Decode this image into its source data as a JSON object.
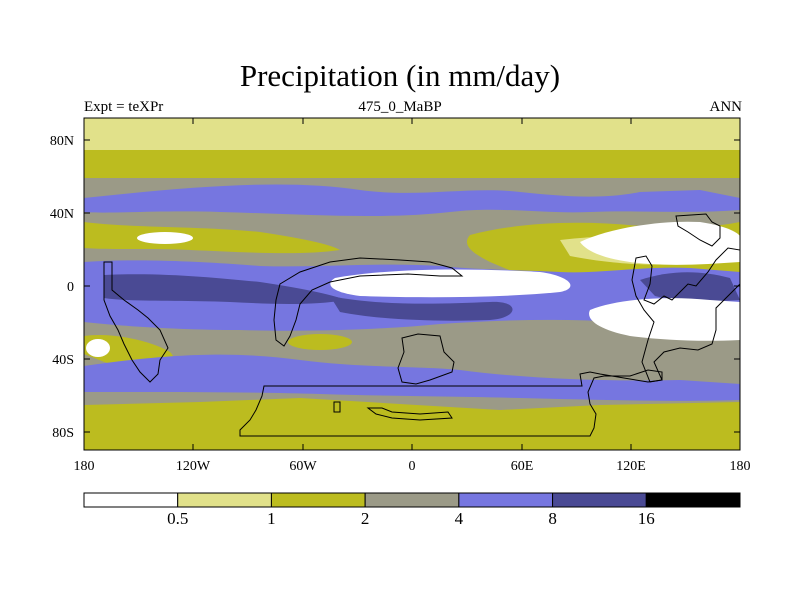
{
  "title": "Precipitation (in mm/day)",
  "subtitle_left": "Expt = teXPr",
  "subtitle_center": "475_0_MaBP",
  "subtitle_right": "ANN",
  "lat_ticks": [
    "80N",
    "40N",
    "0",
    "40S",
    "80S"
  ],
  "lon_ticks": [
    "180",
    "120W",
    "60W",
    "0",
    "60E",
    "120E",
    "180"
  ],
  "colorbar": {
    "labels": [
      "0.5",
      "1",
      "2",
      "4",
      "8",
      "16"
    ],
    "colors": [
      "#ffffff",
      "#e1e18a",
      "#bcbc1f",
      "#9b9a87",
      "#7676e0",
      "#4a4a94",
      "#000000"
    ]
  },
  "palette": {
    "white": "#ffffff",
    "light_yellow": "#e1e18a",
    "olive": "#bcbc1f",
    "gray": "#9b9a87",
    "light_blue": "#7676e0",
    "dark_blue": "#4a4a94",
    "black": "#000000"
  }
}
